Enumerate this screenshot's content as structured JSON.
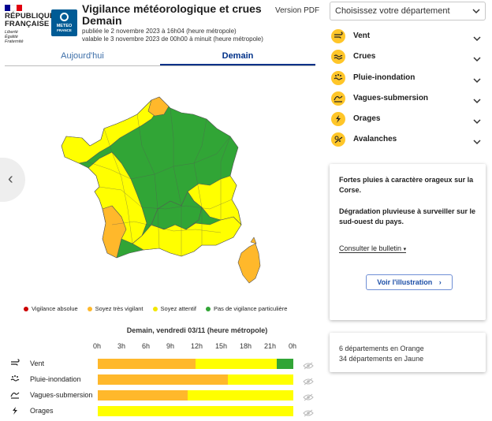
{
  "header": {
    "republic_name": [
      "RÉPUBLIQUE",
      "FRANÇAISE"
    ],
    "motto": [
      "Liberté",
      "Égalité",
      "Fraternité"
    ],
    "logo_text": [
      "METEO",
      "FRANCE"
    ],
    "title_line1": "Vigilance météorologique et crues",
    "title_line2": "Demain",
    "published": "publiée le 2 novembre 2023 à 16h04 (heure métropole)",
    "valid": "valable le 3 novembre 2023 de 00h00 à minuit (heure métropole)",
    "pdf_label": "Version PDF"
  },
  "tabs": [
    {
      "label": "Aujourd'hui",
      "active": false
    },
    {
      "label": "Demain",
      "active": true
    }
  ],
  "colors": {
    "green": "#31a536",
    "yellow": "#ffff00",
    "orange": "#ffb82b",
    "red": "#cc0000",
    "phen_icon": "#ffc629"
  },
  "legend": [
    {
      "label": "Vigilance absolue",
      "color": "#cc0000"
    },
    {
      "label": "Soyez très vigilant",
      "color": "#ffb82b"
    },
    {
      "label": "Soyez attentif",
      "color": "#f2e600"
    },
    {
      "label": "Pas de vigilance particulière",
      "color": "#31a536"
    }
  ],
  "timeline": {
    "title": "Demain, vendredi 03/11 (heure métropole)",
    "hours": [
      "0h",
      "3h",
      "6h",
      "9h",
      "12h",
      "15h",
      "18h",
      "21h",
      "0h"
    ],
    "rows": [
      {
        "icon": "wind-icon",
        "label": "Vent",
        "segments": [
          {
            "color": "orange",
            "hours": 12
          },
          {
            "color": "yellow",
            "hours": 10
          },
          {
            "color": "green",
            "hours": 2
          }
        ]
      },
      {
        "icon": "rain-flood-icon",
        "label": "Pluie-inondation",
        "segments": [
          {
            "color": "orange",
            "hours": 16
          },
          {
            "color": "yellow",
            "hours": 8
          }
        ]
      },
      {
        "icon": "waves-icon",
        "label": "Vagues-submersion",
        "segments": [
          {
            "color": "orange",
            "hours": 11
          },
          {
            "color": "yellow",
            "hours": 13
          }
        ]
      },
      {
        "icon": "storm-icon",
        "label": "Orages",
        "segments": [
          {
            "color": "yellow",
            "hours": 24
          }
        ]
      }
    ]
  },
  "department_select": {
    "placeholder": "Choisissez votre département"
  },
  "phenomena": [
    {
      "icon": "wind-icon",
      "label": "Vent"
    },
    {
      "icon": "flood-icon",
      "label": "Crues"
    },
    {
      "icon": "rain-flood-icon",
      "label": "Pluie-inondation"
    },
    {
      "icon": "waves-icon",
      "label": "Vagues-submersion"
    },
    {
      "icon": "storm-icon",
      "label": "Orages"
    },
    {
      "icon": "avalanche-icon",
      "label": "Avalanches"
    }
  ],
  "bulletin": {
    "text1": "Fortes pluies à caractère orageux sur la Corse.",
    "text2": "Dégradation pluvieuse à surveiller sur le sud-ouest du pays.",
    "link": "Consulter le bulletin",
    "button": "Voir l'illustration"
  },
  "summary": {
    "orange": "6 départements en Orange",
    "yellow": "34 départements en Jaune"
  }
}
